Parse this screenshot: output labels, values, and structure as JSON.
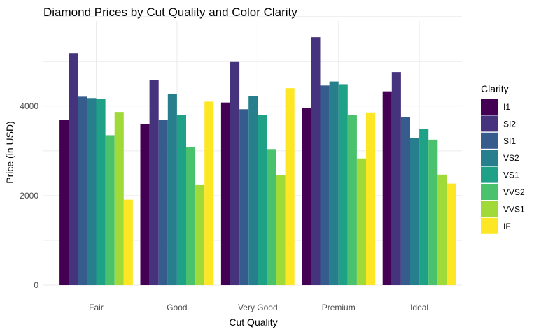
{
  "chart_data": {
    "type": "bar",
    "title": "Diamond Prices by Cut Quality and Color Clarity",
    "xlabel": "Cut Quality",
    "ylabel": "Price (in USD)",
    "ylim": [
      0,
      6000
    ],
    "yticks": [
      0,
      2000,
      4000
    ],
    "grid": true,
    "legend_position": "right",
    "legend_title": "Clarity",
    "categories": [
      "Fair",
      "Good",
      "Very Good",
      "Premium",
      "Ideal"
    ],
    "series": [
      {
        "name": "I1",
        "color": "#440154",
        "values": [
          3700,
          3600,
          4080,
          3950,
          4330
        ]
      },
      {
        "name": "SI2",
        "color": "#46337e",
        "values": [
          5180,
          4580,
          5000,
          5540,
          4760
        ]
      },
      {
        "name": "SI1",
        "color": "#365c8d",
        "values": [
          4210,
          3690,
          3930,
          4460,
          3750
        ]
      },
      {
        "name": "VS2",
        "color": "#277f8e",
        "values": [
          4180,
          4270,
          4220,
          4550,
          3290
        ]
      },
      {
        "name": "VS1",
        "color": "#1fa187",
        "values": [
          4160,
          3800,
          3800,
          4490,
          3490
        ]
      },
      {
        "name": "VVS2",
        "color": "#4ac16d",
        "values": [
          3350,
          3080,
          3040,
          3800,
          3250
        ]
      },
      {
        "name": "VVS1",
        "color": "#a0da39",
        "values": [
          3870,
          2250,
          2460,
          2830,
          2470
        ]
      },
      {
        "name": "IF",
        "color": "#fde725",
        "values": [
          1910,
          4100,
          4400,
          3860,
          2270
        ]
      }
    ]
  }
}
